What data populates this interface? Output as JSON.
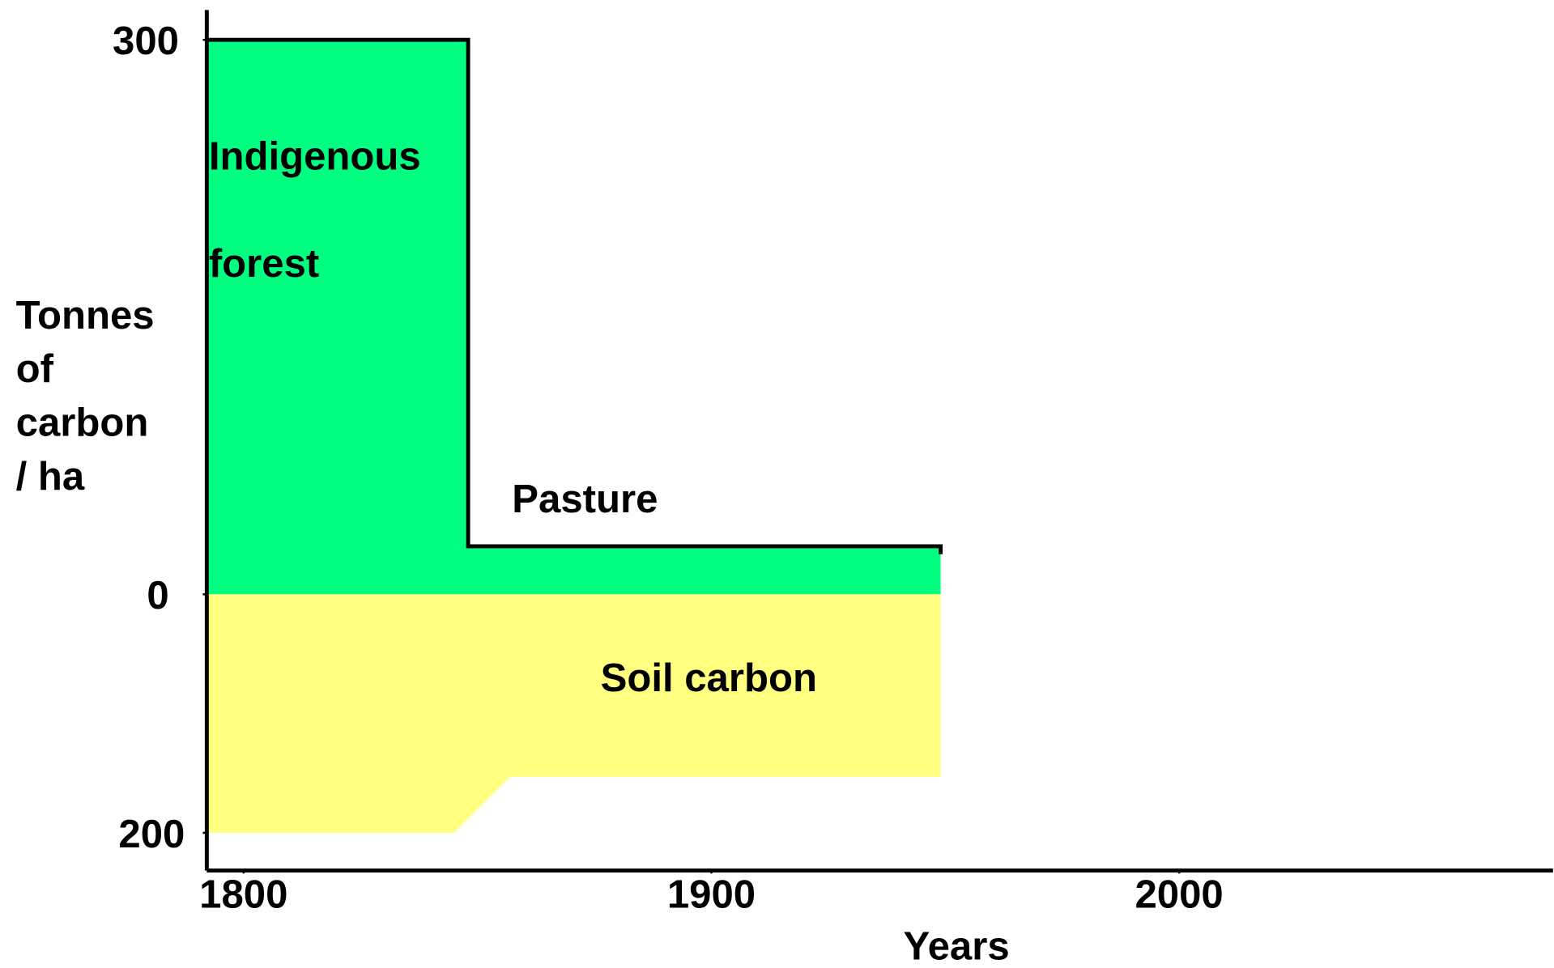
{
  "chart_data": {
    "type": "area",
    "ylabel": [
      "Tonnes",
      "of",
      "carbon",
      "/ ha"
    ],
    "xlabel": "Years",
    "xlim": [
      1792,
      2080
    ],
    "xticks": [
      1800,
      1900,
      2000
    ],
    "ylim": [
      -232,
      316
    ],
    "yticks": [
      300,
      0,
      {
        "value": -200,
        "label": "200"
      }
    ],
    "series": [
      {
        "color": "#00ff80",
        "outline": "#000000",
        "x": [
          1792,
          1848,
          1848,
          1949
        ],
        "values": [
          300,
          300,
          26,
          26
        ]
      },
      {
        "color": "#ffff80",
        "x": [
          1792,
          1845,
          1857,
          1949
        ],
        "values": [
          -200,
          -200,
          -153,
          -153
        ]
      }
    ],
    "annotations": [
      "Indigenous",
      "forest",
      "Pasture",
      "Soil carbon"
    ]
  }
}
